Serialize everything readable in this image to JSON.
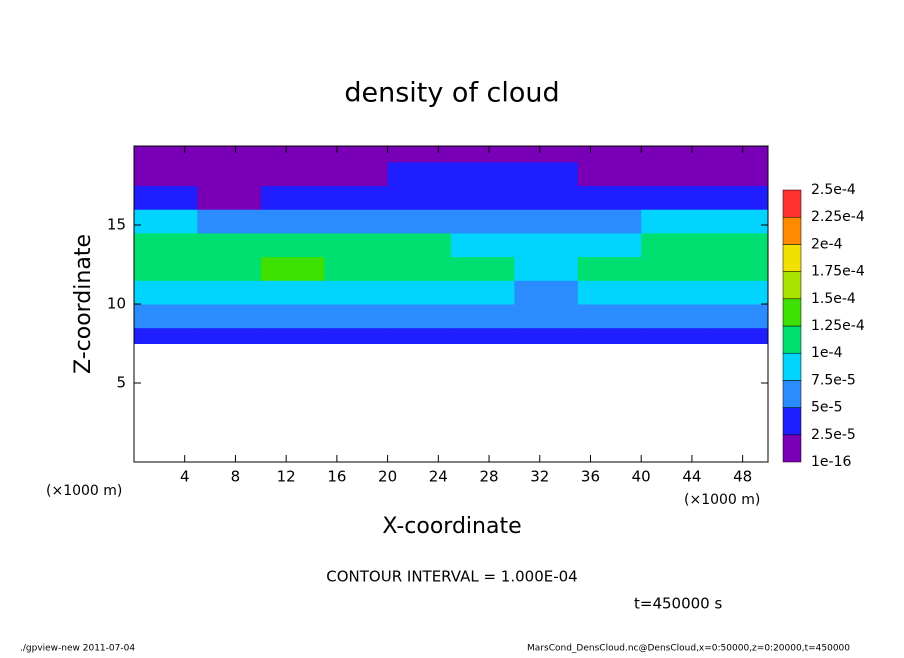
{
  "chart_data": {
    "type": "heatmap",
    "title": "density of cloud",
    "xlabel": "X-coordinate",
    "ylabel": "Z-coordinate",
    "x_unit_label": "(×1000 m)",
    "y_unit_label": "(×1000 m)",
    "contour_note": "CONTOUR INTERVAL = 1.000E-04",
    "time_label": "t=450000 s",
    "footer_left": "./gpview-new  2011-07-04",
    "footer_right": "MarsCond_DensCloud.nc@DensCloud,x=0:50000,z=0:20000,t=450000",
    "xlim": [
      0,
      50
    ],
    "ylim": [
      0,
      20
    ],
    "xticks": [
      4,
      8,
      12,
      16,
      20,
      24,
      28,
      32,
      36,
      40,
      44,
      48
    ],
    "yticks": [
      5,
      10,
      15
    ],
    "field": {
      "x_edges": [
        0,
        5,
        10,
        15,
        20,
        25,
        30,
        35,
        40,
        45,
        50
      ],
      "z_edges": [
        7.5,
        8.5,
        10,
        11.5,
        13,
        14.5,
        16,
        17.5,
        19,
        20
      ],
      "values": [
        [
          3e-05,
          3e-05,
          3e-05,
          3e-05,
          3e-05,
          3e-05,
          3e-05,
          3e-05,
          3e-05,
          3e-05
        ],
        [
          6e-05,
          6e-05,
          6e-05,
          6e-05,
          6e-05,
          6e-05,
          5e-05,
          6e-05,
          6e-05,
          6e-05
        ],
        [
          9e-05,
          9e-05,
          9e-05,
          9e-05,
          9e-05,
          8e-05,
          7e-05,
          8e-05,
          9e-05,
          9e-05
        ],
        [
          0.00012,
          0.00012,
          0.000125,
          0.00012,
          0.000115,
          0.00011,
          8e-05,
          0.00011,
          0.00012,
          0.00012
        ],
        [
          0.000115,
          0.00012,
          0.00012,
          0.000115,
          0.000105,
          9e-05,
          8e-05,
          9e-05,
          0.000115,
          0.000115
        ],
        [
          8e-05,
          7e-05,
          7e-05,
          6e-05,
          6e-05,
          6e-05,
          6e-05,
          7e-05,
          8e-05,
          8e-05
        ],
        [
          3e-05,
          2e-05,
          3e-05,
          4e-05,
          4e-05,
          4e-05,
          3.5e-05,
          3e-05,
          3e-05,
          3e-05
        ],
        [
          2e-05,
          1e-05,
          1e-05,
          2e-05,
          2.5e-05,
          3e-05,
          3e-05,
          2e-05,
          2e-05,
          2e-05
        ],
        [
          1e-05,
          1e-05,
          1e-05,
          1e-05,
          1e-05,
          1e-05,
          1e-05,
          1e-05,
          1e-05,
          1e-05
        ]
      ]
    },
    "colorbar": {
      "levels": [
        {
          "value": 1e-16,
          "label": "1e-16"
        },
        {
          "value": 2.5e-05,
          "label": "2.5e-5"
        },
        {
          "value": 5e-05,
          "label": "5e-5"
        },
        {
          "value": 7.5e-05,
          "label": "7.5e-5"
        },
        {
          "value": 0.0001,
          "label": "1e-4"
        },
        {
          "value": 0.000125,
          "label": "1.25e-4"
        },
        {
          "value": 0.00015,
          "label": "1.5e-4"
        },
        {
          "value": 0.000175,
          "label": "1.75e-4"
        },
        {
          "value": 0.0002,
          "label": "2e-4"
        },
        {
          "value": 0.000225,
          "label": "2.25e-4"
        },
        {
          "value": 0.00025,
          "label": "2.5e-4"
        }
      ],
      "colors": [
        "#7a00b8",
        "#1e1eff",
        "#2a8cff",
        "#00d4ff",
        "#00e070",
        "#3ee000",
        "#a8e400",
        "#f2e000",
        "#ff8a00",
        "#ff3030"
      ]
    }
  }
}
